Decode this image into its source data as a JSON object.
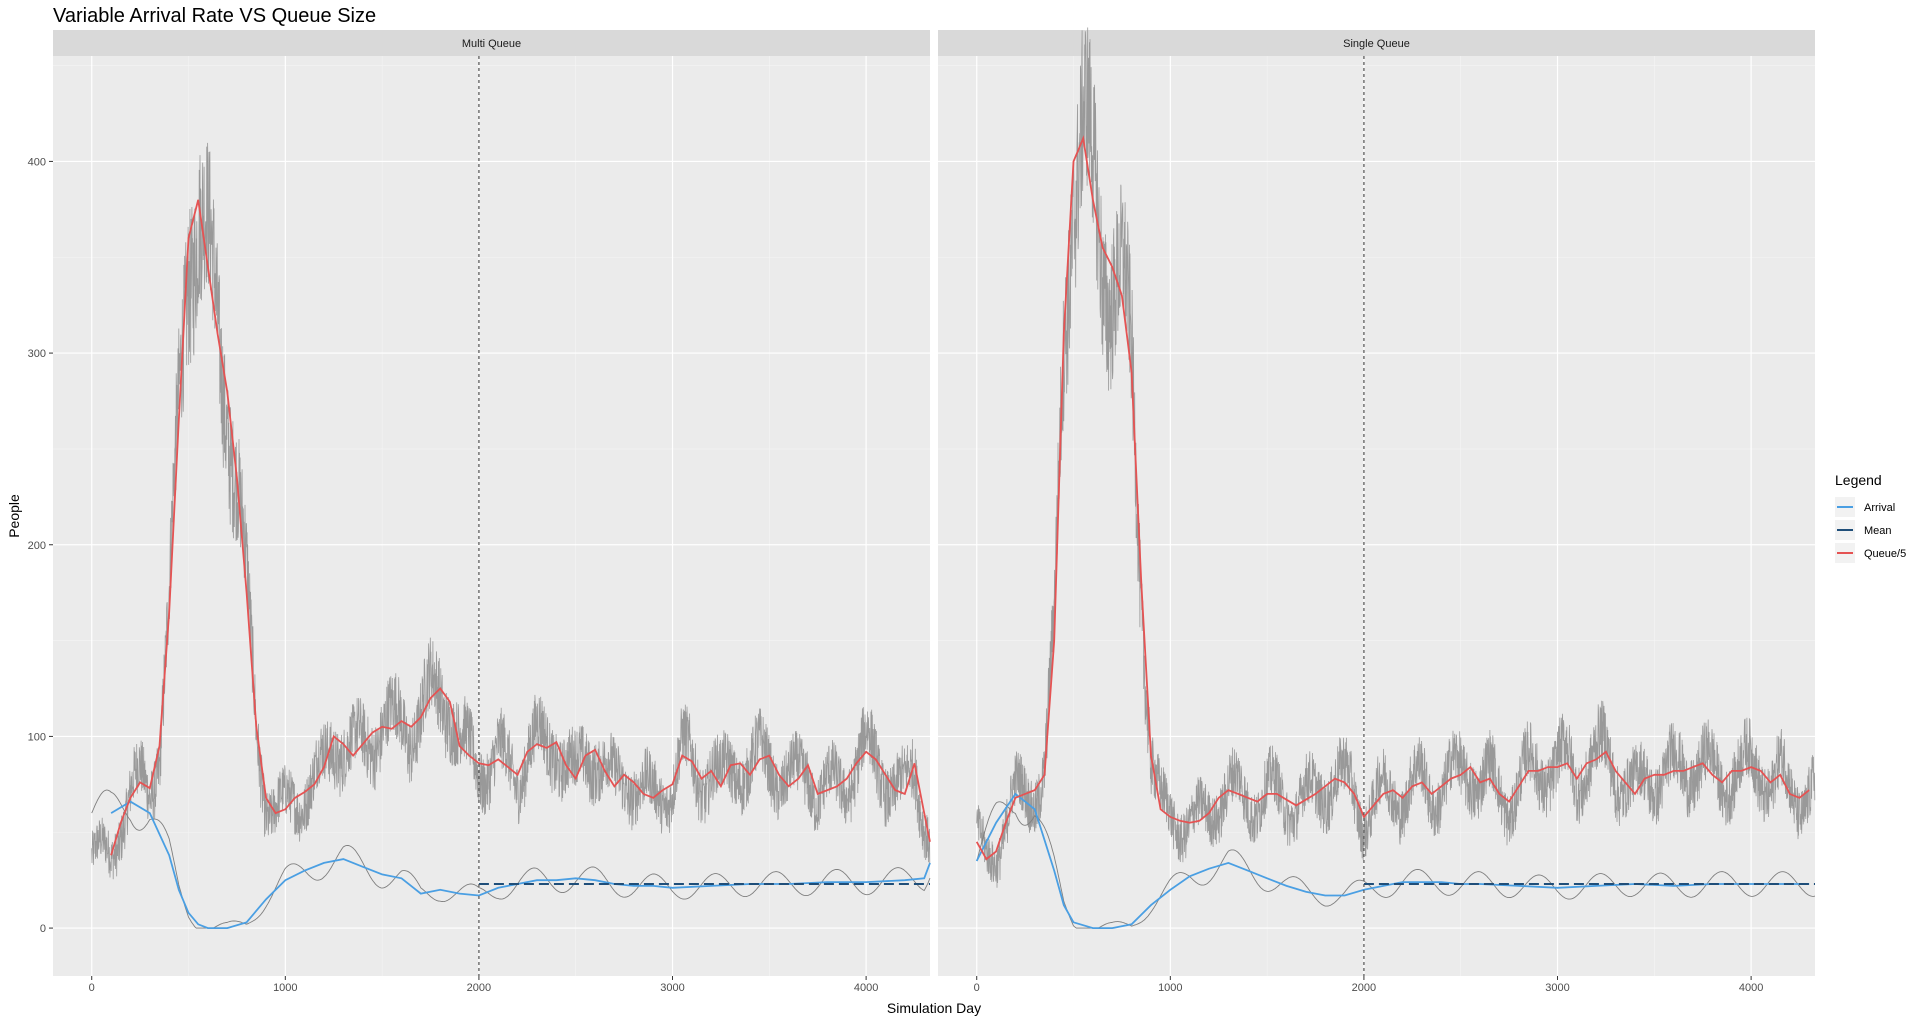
{
  "chart_data": {
    "type": "line",
    "title": "Variable Arrival Rate VS Queue Size",
    "xlabel": "Simulation Day",
    "ylabel": "People",
    "xlim": [
      -200,
      4330
    ],
    "ylim": [
      -25,
      455
    ],
    "x_ticks": [
      0,
      1000,
      2000,
      3000,
      4000
    ],
    "y_ticks": [
      0,
      100,
      200,
      300,
      400
    ],
    "grid": true,
    "vline": {
      "x": 2000,
      "style": "dotted"
    },
    "legend": {
      "title": "Legend",
      "placement": "right",
      "entries": [
        {
          "label": "Arrival",
          "color": "#4a9fe3"
        },
        {
          "label": "Mean",
          "color": "#1f4e79"
        },
        {
          "label": "Queue/5",
          "color": "#e55353"
        }
      ]
    },
    "colors": {
      "raw_queue": "#999999",
      "arrival_raw": "#7f7f7f",
      "panel_bg": "#ebebeb",
      "strip_bg": "#d9d9d9"
    },
    "panels": [
      {
        "strip": "Multi Queue",
        "mean": {
          "x": [
            2000,
            4330
          ],
          "y": [
            23,
            23
          ]
        },
        "queue_smooth": {
          "x": [
            100,
            150,
            200,
            250,
            300,
            350,
            400,
            450,
            500,
            550,
            600,
            650,
            700,
            750,
            800,
            850,
            900,
            950,
            1000,
            1050,
            1100,
            1150,
            1200,
            1250,
            1300,
            1350,
            1400,
            1450,
            1500,
            1550,
            1600,
            1650,
            1700,
            1750,
            1800,
            1850,
            1900,
            1950,
            2000,
            2050,
            2100,
            2150,
            2200,
            2250,
            2300,
            2350,
            2400,
            2450,
            2500,
            2550,
            2600,
            2650,
            2700,
            2750,
            2800,
            2850,
            2900,
            2950,
            3000,
            3050,
            3100,
            3150,
            3200,
            3250,
            3300,
            3350,
            3400,
            3450,
            3500,
            3550,
            3600,
            3650,
            3700,
            3750,
            3800,
            3850,
            3900,
            3950,
            4000,
            4050,
            4100,
            4150,
            4200,
            4250,
            4300,
            4330
          ],
          "y": [
            38,
            55,
            68,
            76,
            73,
            95,
            165,
            265,
            360,
            380,
            345,
            310,
            280,
            235,
            175,
            105,
            68,
            60,
            62,
            68,
            71,
            75,
            84,
            100,
            96,
            90,
            96,
            102,
            105,
            104,
            108,
            105,
            110,
            120,
            125,
            118,
            95,
            90,
            86,
            85,
            88,
            84,
            80,
            92,
            96,
            94,
            97,
            85,
            78,
            90,
            93,
            82,
            74,
            80,
            76,
            70,
            68,
            72,
            75,
            90,
            87,
            78,
            82,
            74,
            85,
            86,
            80,
            88,
            90,
            80,
            74,
            78,
            85,
            70,
            72,
            74,
            78,
            86,
            92,
            88,
            80,
            72,
            70,
            86,
            60,
            45
          ]
        },
        "arrival_smooth": {
          "x": [
            100,
            200,
            300,
            400,
            450,
            500,
            550,
            600,
            700,
            800,
            900,
            1000,
            1100,
            1200,
            1300,
            1400,
            1500,
            1600,
            1700,
            1800,
            1900,
            2000,
            2100,
            2200,
            2300,
            2400,
            2500,
            2600,
            2700,
            2800,
            2900,
            3000,
            3200,
            3400,
            3600,
            3800,
            4000,
            4200,
            4300,
            4330
          ],
          "y": [
            60,
            66,
            60,
            38,
            20,
            8,
            2,
            0,
            0,
            3,
            15,
            25,
            30,
            34,
            36,
            32,
            28,
            26,
            18,
            20,
            18,
            17,
            21,
            23,
            25,
            25,
            26,
            25,
            23,
            22,
            22,
            21,
            22,
            23,
            23,
            24,
            24,
            25,
            26,
            34
          ]
        }
      },
      {
        "strip": "Single Queue",
        "mean": {
          "x": [
            2000,
            4330
          ],
          "y": [
            23,
            23
          ]
        },
        "queue_smooth": {
          "x": [
            0,
            50,
            100,
            150,
            200,
            250,
            300,
            350,
            400,
            450,
            500,
            550,
            600,
            650,
            700,
            750,
            800,
            850,
            900,
            950,
            1000,
            1050,
            1100,
            1150,
            1200,
            1250,
            1300,
            1350,
            1400,
            1450,
            1500,
            1550,
            1600,
            1650,
            1700,
            1750,
            1800,
            1850,
            1900,
            1950,
            2000,
            2050,
            2100,
            2150,
            2200,
            2250,
            2300,
            2350,
            2400,
            2450,
            2500,
            2550,
            2600,
            2650,
            2700,
            2750,
            2800,
            2850,
            2900,
            2950,
            3000,
            3050,
            3100,
            3150,
            3200,
            3250,
            3300,
            3350,
            3400,
            3450,
            3500,
            3550,
            3600,
            3650,
            3700,
            3750,
            3800,
            3850,
            3900,
            3950,
            4000,
            4050,
            4100,
            4150,
            4200,
            4250,
            4300
          ],
          "y": [
            45,
            36,
            40,
            55,
            68,
            70,
            72,
            80,
            150,
            310,
            400,
            412,
            380,
            355,
            345,
            330,
            290,
            180,
            90,
            62,
            58,
            56,
            55,
            56,
            60,
            68,
            72,
            70,
            68,
            66,
            70,
            70,
            67,
            64,
            67,
            70,
            74,
            78,
            76,
            70,
            58,
            64,
            70,
            72,
            68,
            74,
            76,
            70,
            74,
            78,
            80,
            84,
            76,
            78,
            70,
            66,
            74,
            82,
            82,
            84,
            84,
            86,
            78,
            86,
            88,
            92,
            82,
            76,
            70,
            78,
            80,
            80,
            82,
            82,
            84,
            86,
            80,
            76,
            82,
            82,
            84,
            82,
            76,
            80,
            70,
            68,
            72
          ]
        },
        "arrival_smooth": {
          "x": [
            0,
            100,
            200,
            300,
            400,
            450,
            500,
            600,
            700,
            800,
            900,
            1000,
            1100,
            1200,
            1300,
            1400,
            1500,
            1600,
            1700,
            1800,
            1900,
            2000,
            2100,
            2200,
            2300,
            2400,
            2500,
            2600,
            2800,
            3000,
            3200,
            3400,
            3600,
            3800,
            4000,
            4200,
            4300
          ],
          "y": [
            35,
            55,
            70,
            62,
            30,
            12,
            3,
            0,
            0,
            2,
            12,
            20,
            27,
            31,
            34,
            30,
            26,
            22,
            19,
            17,
            17,
            20,
            22,
            24,
            24,
            24,
            23,
            23,
            22,
            21,
            22,
            23,
            22,
            23,
            23,
            23,
            23
          ]
        }
      }
    ]
  }
}
